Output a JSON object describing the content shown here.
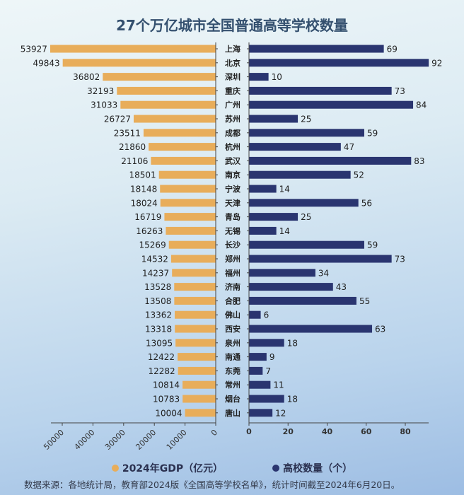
{
  "chart_data": {
    "type": "bar",
    "title": "27个万亿城市全国普通高等学校数量",
    "categories": [
      "上海",
      "北京",
      "深圳",
      "重庆",
      "广州",
      "苏州",
      "成都",
      "杭州",
      "武汉",
      "南京",
      "宁波",
      "天津",
      "青岛",
      "无锡",
      "长沙",
      "郑州",
      "福州",
      "济南",
      "合肥",
      "佛山",
      "西安",
      "泉州",
      "南通",
      "东莞",
      "常州",
      "烟台",
      "唐山"
    ],
    "series": [
      {
        "name": "2024年GDP（亿元）",
        "color": "#e8ad5a",
        "values": [
          53927,
          49843,
          36802,
          32193,
          31033,
          26727,
          23511,
          21860,
          21106,
          18501,
          18148,
          18024,
          16719,
          16263,
          15269,
          14532,
          14237,
          13528,
          13508,
          13362,
          13318,
          13095,
          12422,
          12282,
          10814,
          10783,
          10004
        ],
        "xlim": [
          0,
          50000
        ],
        "ticks": [
          "0",
          "10000",
          "20000",
          "30000",
          "40000",
          "50000"
        ]
      },
      {
        "name": "高校数量（个）",
        "color": "#2a3570",
        "values": [
          69,
          92,
          10,
          73,
          84,
          25,
          59,
          47,
          83,
          52,
          14,
          56,
          25,
          14,
          59,
          73,
          34,
          43,
          55,
          6,
          63,
          18,
          9,
          7,
          11,
          18,
          12
        ],
        "xlim": [
          0,
          80
        ],
        "ticks": [
          "0",
          "20",
          "40",
          "60",
          "80"
        ]
      }
    ],
    "legend": "bottom",
    "grid": false
  },
  "source": "数据来源：各地统计局，教育部2024版《全国高等学校名单》，统计时间截至2024年6月20日。"
}
